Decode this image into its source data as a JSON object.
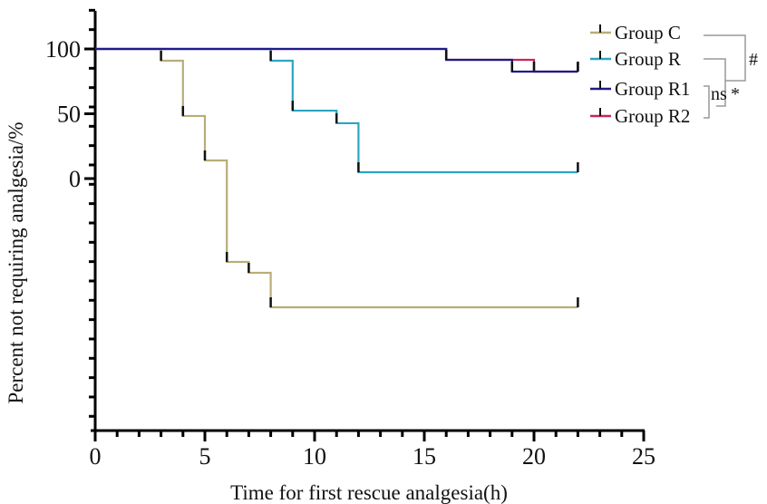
{
  "chart_data": {
    "type": "line",
    "subtype": "kaplan-meier step",
    "xlabel": "Time for first rescue analgesia(h)",
    "ylabel": "Percent not requiring analgesia/%",
    "xlim": [
      0,
      25
    ],
    "x_ticks": [
      "0",
      "5",
      "10",
      "15",
      "20",
      "25"
    ],
    "y_ticks": [
      {
        "value": 100,
        "label": "100"
      },
      {
        "value": 50,
        "label": "50"
      },
      {
        "value": 0,
        "label": "0"
      }
    ],
    "ylim": [
      -194,
      129
    ],
    "grid": false,
    "legend_position": "top-right",
    "series": [
      {
        "name": "Group C",
        "color": "#b8ad78",
        "steps": [
          [
            0,
            100
          ],
          [
            3,
            90.9
          ],
          [
            4,
            48.3
          ],
          [
            5,
            14.0
          ],
          [
            6,
            -64.3
          ],
          [
            7,
            -72.7
          ],
          [
            8,
            -99.3
          ]
        ],
        "end": 22,
        "censor": [
          22
        ]
      },
      {
        "name": "Group R",
        "color": "#2aa6c4",
        "steps": [
          [
            0,
            100
          ],
          [
            8,
            90.9
          ],
          [
            9,
            52.4
          ],
          [
            11,
            42.7
          ],
          [
            12,
            4.9
          ]
        ],
        "end": 22,
        "censor": [
          22
        ]
      },
      {
        "name": "Group R1",
        "color": "#1c1c8c",
        "steps": [
          [
            0,
            100
          ],
          [
            16,
            91.6
          ],
          [
            19,
            82.5
          ]
        ],
        "end": 22,
        "censor": [
          22
        ]
      },
      {
        "name": "Group R2",
        "color": "#c8245a",
        "steps": [
          [
            0,
            100
          ],
          [
            16,
            91.6
          ],
          [
            20,
            82.5
          ]
        ],
        "end": 22,
        "censor": [
          22
        ]
      }
    ],
    "annotations": {
      "c_vs_r": "#",
      "r_vs_r1r2": "*",
      "r1_vs_r2": "ns"
    }
  }
}
